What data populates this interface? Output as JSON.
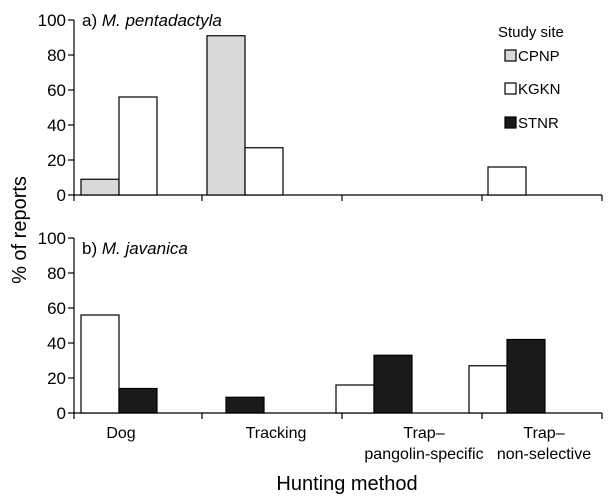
{
  "ylabel": "% of reports",
  "xlabel": "Hunting method",
  "legend": {
    "title": "Study site",
    "items": [
      {
        "name": "CPNP",
        "color": "#d9d9d9"
      },
      {
        "name": "KGKN",
        "color": "#ffffff"
      },
      {
        "name": "STNR",
        "color": "#1a1a1a"
      }
    ]
  },
  "categories": [
    "Dog",
    "Tracking",
    "Trap–",
    "Trap–"
  ],
  "category_lines2": [
    "",
    "",
    "pangolin-specific",
    "non-selective"
  ],
  "panels": [
    {
      "prefix": "a) ",
      "species": "M. pentadactyla"
    },
    {
      "prefix": "b) ",
      "species": "M. javanica"
    }
  ],
  "chart_data": [
    {
      "type": "bar",
      "title": "a) M. pentadactyla",
      "categories": [
        "Dog",
        "Tracking",
        "Trap–pangolin-specific",
        "Trap–non-selective"
      ],
      "series": [
        {
          "name": "CPNP",
          "values": [
            9,
            91,
            0,
            0
          ]
        },
        {
          "name": "KGKN",
          "values": [
            56,
            27,
            0,
            16
          ]
        },
        {
          "name": "STNR",
          "values": [
            0,
            0,
            0,
            0
          ]
        }
      ],
      "ylim": [
        0,
        100
      ],
      "yticks": [
        0,
        20,
        40,
        60,
        80,
        100
      ],
      "ylabel": "% of reports",
      "legend_position": "top-right",
      "grid": false
    },
    {
      "type": "bar",
      "title": "b) M. javanica",
      "categories": [
        "Dog",
        "Tracking",
        "Trap–pangolin-specific",
        "Trap–non-selective"
      ],
      "series": [
        {
          "name": "CPNP",
          "values": [
            0,
            0,
            0,
            0
          ]
        },
        {
          "name": "KGKN",
          "values": [
            56,
            0,
            16,
            27
          ]
        },
        {
          "name": "STNR",
          "values": [
            14,
            9,
            33,
            42
          ]
        }
      ],
      "ylim": [
        0,
        100
      ],
      "yticks": [
        0,
        20,
        40,
        60,
        80,
        100
      ],
      "xlabel": "Hunting method",
      "grid": false
    }
  ]
}
